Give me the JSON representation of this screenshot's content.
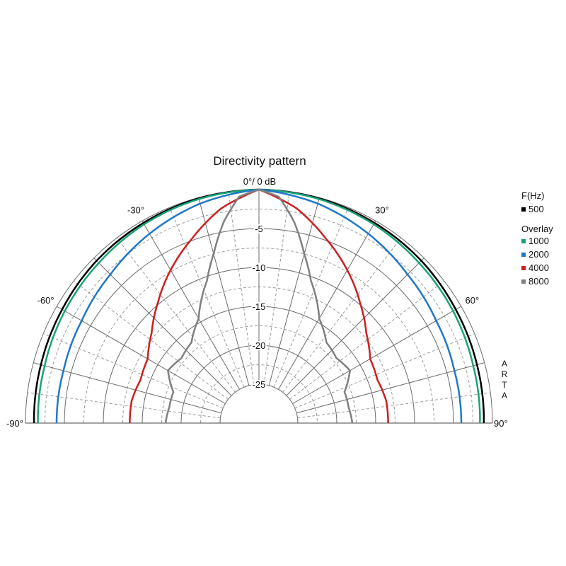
{
  "chart_data": {
    "type": "polar-half",
    "title": "Directivity pattern",
    "top_label": "0°/ 0 dB",
    "angle_labels": [
      {
        "deg": -90,
        "text": "-90°"
      },
      {
        "deg": -60,
        "text": "-60°"
      },
      {
        "deg": -30,
        "text": "-30°"
      },
      {
        "deg": 30,
        "text": "30°"
      },
      {
        "deg": 60,
        "text": "60°"
      },
      {
        "deg": 90,
        "text": "90°"
      }
    ],
    "radial_range_db": [
      -30,
      0
    ],
    "radial_labels": [
      {
        "db": -5,
        "text": "-5"
      },
      {
        "db": -10,
        "text": "-10"
      },
      {
        "db": -15,
        "text": "-15"
      },
      {
        "db": -20,
        "text": "-20"
      },
      {
        "db": -25,
        "text": "-25"
      }
    ],
    "major_db_rings": [
      0,
      -5,
      -10,
      -15,
      -20,
      -25
    ],
    "minor_db_rings": [
      -2.5,
      -7.5,
      -12.5,
      -17.5,
      -22.5
    ],
    "major_angle_step_deg": 15,
    "minor_angle_offset_deg": 7.5,
    "legend": {
      "header": "F(Hz)",
      "overlay_header": "Overlay",
      "placement": "right"
    },
    "watermark": [
      "A",
      "R",
      "T",
      "A"
    ],
    "series": [
      {
        "name": "500",
        "color": "#000000",
        "angles": [
          0,
          15,
          30,
          45,
          60,
          75,
          90
        ],
        "values_db": [
          0,
          -0.1,
          -0.3,
          -0.5,
          -0.8,
          -1.0,
          -1.1
        ]
      },
      {
        "name": "1000",
        "color": "#1aa37a",
        "angles": [
          0,
          15,
          30,
          45,
          60,
          75,
          90
        ],
        "values_db": [
          0,
          -0.2,
          -0.5,
          -0.9,
          -1.2,
          -1.5,
          -1.6
        ]
      },
      {
        "name": "2000",
        "color": "#1f78c8",
        "angles": [
          0,
          15,
          30,
          45,
          60,
          75,
          90
        ],
        "values_db": [
          0,
          -0.8,
          -1.9,
          -3.0,
          -3.7,
          -4.0,
          -4.0
        ]
      },
      {
        "name": "4000",
        "color": "#cc1f1f",
        "angles": [
          0,
          10,
          20,
          30,
          40,
          50,
          60,
          70,
          80,
          90
        ],
        "values_db": [
          0,
          -2.0,
          -4.8,
          -7.3,
          -9.8,
          -12.0,
          -13.5,
          -13.8,
          -13.4,
          -13.4
        ]
      },
      {
        "name": "8000",
        "color": "#808080",
        "angles": [
          0,
          5,
          10,
          15,
          20,
          30,
          40,
          50,
          60,
          70,
          80,
          90
        ],
        "values_db": [
          0,
          -0.8,
          -3.8,
          -7.5,
          -10.5,
          -14.5,
          -16.5,
          -17.0,
          -16.5,
          -18.3,
          -18.3,
          -18.0
        ]
      }
    ]
  }
}
